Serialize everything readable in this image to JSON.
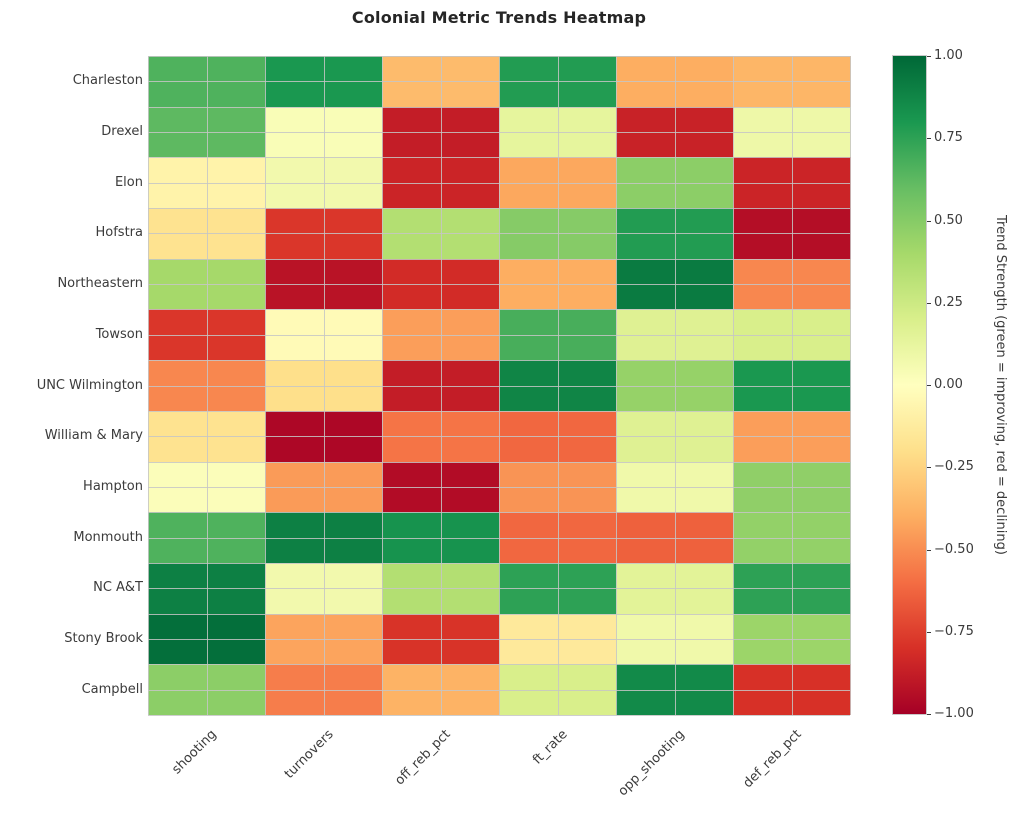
{
  "title": "Colonial Metric Trends Heatmap",
  "colorbar": {
    "label": "Trend Strength (green = improving, red = declining)",
    "tick_labels": [
      "1.00",
      "0.75",
      "0.50",
      "0.25",
      "0.00",
      "−0.25",
      "−0.50",
      "−0.75",
      "−1.00"
    ],
    "tick_values": [
      1.0,
      0.75,
      0.5,
      0.25,
      0.0,
      -0.25,
      -0.5,
      -0.75,
      -1.0
    ]
  },
  "chart_data": {
    "type": "heatmap",
    "title": "Colonial Metric Trends Heatmap",
    "rows": [
      "Charleston",
      "Drexel",
      "Elon",
      "Hofstra",
      "Northeastern",
      "Towson",
      "UNC Wilmington",
      "William & Mary",
      "Hampton",
      "Monmouth",
      "NC A&T",
      "Stony Brook",
      "Campbell"
    ],
    "columns": [
      "shooting",
      "turnovers",
      "off_reb_pct",
      "ft_rate",
      "opp_shooting",
      "def_reb_pct"
    ],
    "values": [
      [
        0.66,
        0.8,
        -0.35,
        0.78,
        -0.4,
        -0.37
      ],
      [
        0.62,
        0.03,
        -0.88,
        0.13,
        -0.86,
        0.09
      ],
      [
        -0.08,
        0.07,
        -0.85,
        -0.42,
        0.48,
        -0.85
      ],
      [
        -0.18,
        -0.78,
        0.35,
        0.5,
        0.78,
        -0.94
      ],
      [
        0.4,
        -0.92,
        -0.82,
        -0.4,
        0.92,
        -0.52
      ],
      [
        -0.78,
        -0.03,
        -0.45,
        0.68,
        0.17,
        0.2
      ],
      [
        -0.52,
        -0.2,
        -0.88,
        0.88,
        0.45,
        0.8
      ],
      [
        -0.18,
        -0.97,
        -0.58,
        -0.62,
        0.17,
        -0.45
      ],
      [
        0.02,
        -0.46,
        -0.95,
        -0.48,
        0.08,
        0.47
      ],
      [
        0.66,
        0.9,
        0.82,
        -0.62,
        -0.64,
        0.46
      ],
      [
        0.9,
        0.07,
        0.35,
        0.75,
        0.15,
        0.75
      ],
      [
        0.97,
        -0.43,
        -0.79,
        -0.14,
        0.08,
        0.43
      ],
      [
        0.48,
        -0.55,
        -0.38,
        0.2,
        0.86,
        -0.8
      ]
    ],
    "colormap": "RdYlGn",
    "vmin": -1.0,
    "vmax": 1.0,
    "grid": true,
    "colorbar_label": "Trend Strength (green = improving, red = declining)",
    "legend_position": "right-colorbar"
  },
  "colors": {
    "grid": "#c6c6c6",
    "tick_text": "#3b3b3b",
    "title_text": "#262626",
    "background": "#ffffff",
    "cmap_stops": [
      "#a50026",
      "#d73027",
      "#f46d43",
      "#fdae61",
      "#fee08b",
      "#ffffbf",
      "#d9ef8b",
      "#a6d96a",
      "#66bd63",
      "#1a9850",
      "#006837"
    ]
  }
}
